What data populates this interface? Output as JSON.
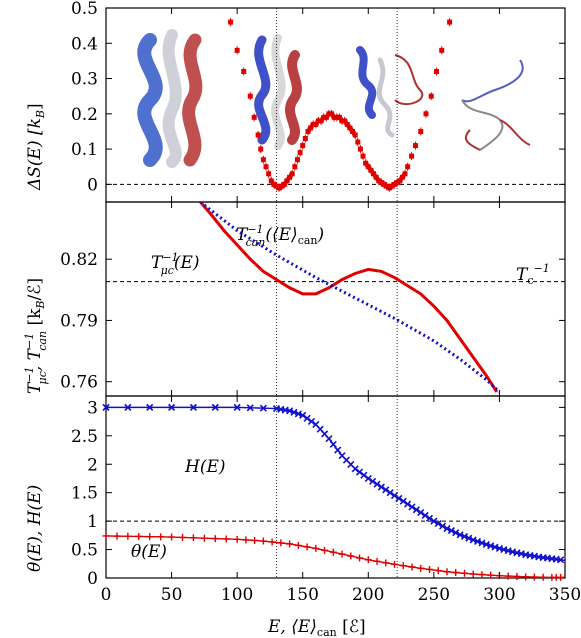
{
  "chart_data": [
    {
      "type": "scatter",
      "ylabel": "ΔS(E) [k_B]",
      "ylim": [
        -0.05,
        0.5
      ],
      "yticks": [
        "0",
        "0.1",
        "0.2",
        "0.3",
        "0.4",
        "0.5"
      ],
      "ytick_values": [
        0,
        0.1,
        0.2,
        0.3,
        0.4,
        0.5
      ],
      "reference_line": 0,
      "series": [
        {
          "color": "#e00000",
          "points": [
            [
              95,
              0.46
            ],
            [
              100,
              0.38
            ],
            [
              105,
              0.32
            ],
            [
              110,
              0.25
            ],
            [
              113,
              0.19
            ],
            [
              116,
              0.14
            ],
            [
              118,
              0.1
            ],
            [
              120,
              0.07
            ],
            [
              122,
              0.05
            ],
            [
              124,
              0.03
            ],
            [
              126,
              0.01
            ],
            [
              128,
              0.0
            ],
            [
              130,
              -0.005
            ],
            [
              132,
              -0.01
            ],
            [
              134,
              -0.005
            ],
            [
              136,
              0.0
            ],
            [
              138,
              0.01
            ],
            [
              140,
              0.02
            ],
            [
              142,
              0.03
            ],
            [
              144,
              0.05
            ],
            [
              146,
              0.07
            ],
            [
              148,
              0.09
            ],
            [
              150,
              0.11
            ],
            [
              152,
              0.13
            ],
            [
              154,
              0.15
            ],
            [
              156,
              0.16
            ],
            [
              158,
              0.17
            ],
            [
              160,
              0.17
            ],
            [
              162,
              0.18
            ],
            [
              164,
              0.18
            ],
            [
              166,
              0.19
            ],
            [
              168,
              0.19
            ],
            [
              170,
              0.2
            ],
            [
              172,
              0.2
            ],
            [
              174,
              0.19
            ],
            [
              176,
              0.19
            ],
            [
              178,
              0.19
            ],
            [
              180,
              0.18
            ],
            [
              182,
              0.18
            ],
            [
              184,
              0.17
            ],
            [
              186,
              0.16
            ],
            [
              188,
              0.15
            ],
            [
              190,
              0.14
            ],
            [
              192,
              0.12
            ],
            [
              194,
              0.1
            ],
            [
              196,
              0.08
            ],
            [
              198,
              0.06
            ],
            [
              200,
              0.05
            ],
            [
              202,
              0.04
            ],
            [
              204,
              0.03
            ],
            [
              206,
              0.02
            ],
            [
              208,
              0.01
            ],
            [
              210,
              0.005
            ],
            [
              212,
              0.0
            ],
            [
              214,
              -0.005
            ],
            [
              216,
              -0.01
            ],
            [
              218,
              -0.005
            ],
            [
              220,
              0.0
            ],
            [
              222,
              0.005
            ],
            [
              224,
              0.01
            ],
            [
              226,
              0.02
            ],
            [
              228,
              0.03
            ],
            [
              230,
              0.05
            ],
            [
              233,
              0.08
            ],
            [
              236,
              0.11
            ],
            [
              240,
              0.15
            ],
            [
              244,
              0.2
            ],
            [
              248,
              0.25
            ],
            [
              252,
              0.32
            ],
            [
              256,
              0.38
            ],
            [
              262,
              0.46
            ]
          ]
        }
      ]
    },
    {
      "type": "line",
      "ylabel": "T_μc^-1, T_can^-1 [k_B/ℰ]",
      "ylim": [
        0.753,
        0.848
      ],
      "yticks": [
        "0.76",
        "0.79",
        "0.82"
      ],
      "ytick_values": [
        0.76,
        0.79,
        0.82
      ],
      "reference_line": 0.809,
      "reference_label": "T_c^-1",
      "series": [
        {
          "name": "T_μc^-1(E)",
          "color": "#e00000",
          "style": "solid",
          "points": [
            [
              72,
              0.848
            ],
            [
              80,
              0.842
            ],
            [
              90,
              0.834
            ],
            [
              100,
              0.827
            ],
            [
              110,
              0.82
            ],
            [
              120,
              0.814
            ],
            [
              130,
              0.81
            ],
            [
              140,
              0.806
            ],
            [
              150,
              0.803
            ],
            [
              160,
              0.803
            ],
            [
              170,
              0.806
            ],
            [
              180,
              0.81
            ],
            [
              190,
              0.813
            ],
            [
              200,
              0.815
            ],
            [
              210,
              0.814
            ],
            [
              220,
              0.811
            ],
            [
              230,
              0.807
            ],
            [
              240,
              0.803
            ],
            [
              250,
              0.797
            ],
            [
              260,
              0.79
            ],
            [
              270,
              0.781
            ],
            [
              280,
              0.772
            ],
            [
              290,
              0.763
            ],
            [
              298,
              0.755
            ]
          ]
        },
        {
          "name": "T_can^-1(⟨E⟩_can)",
          "color": "#1010cc",
          "style": "dotted",
          "points": [
            [
              72,
              0.848
            ],
            [
              100,
              0.834
            ],
            [
              130,
              0.822
            ],
            [
              160,
              0.811
            ],
            [
              190,
              0.801
            ],
            [
              220,
              0.791
            ],
            [
              250,
              0.78
            ],
            [
              270,
              0.771
            ],
            [
              290,
              0.761
            ],
            [
              300,
              0.755
            ]
          ]
        }
      ]
    },
    {
      "type": "line",
      "xlabel": "E, ⟨E⟩_can [ℰ]",
      "ylabel": "θ(E), H(E)",
      "ylim": [
        0,
        3.2
      ],
      "yticks": [
        "0",
        "0.5",
        "1",
        "1.5",
        "2",
        "2.5",
        "3"
      ],
      "ytick_values": [
        0,
        0.5,
        1,
        1.5,
        2,
        2.5,
        3
      ],
      "xlim": [
        0,
        350
      ],
      "xticks": [
        "0",
        "50",
        "100",
        "150",
        "200",
        "250",
        "300",
        "350"
      ],
      "xtick_values": [
        0,
        50,
        100,
        150,
        200,
        250,
        300,
        350
      ],
      "reference_line": 1,
      "series": [
        {
          "name": "H(E)",
          "color": "#1010cc",
          "marker": "x",
          "points": [
            [
              0,
              3.0
            ],
            [
              50,
              3.0
            ],
            [
              100,
              3.0
            ],
            [
              130,
              2.98
            ],
            [
              140,
              2.94
            ],
            [
              150,
              2.86
            ],
            [
              160,
              2.7
            ],
            [
              170,
              2.45
            ],
            [
              180,
              2.15
            ],
            [
              190,
              1.92
            ],
            [
              200,
              1.75
            ],
            [
              210,
              1.6
            ],
            [
              220,
              1.45
            ],
            [
              230,
              1.3
            ],
            [
              240,
              1.15
            ],
            [
              250,
              1.0
            ],
            [
              260,
              0.87
            ],
            [
              270,
              0.76
            ],
            [
              280,
              0.67
            ],
            [
              290,
              0.59
            ],
            [
              300,
              0.52
            ],
            [
              310,
              0.46
            ],
            [
              320,
              0.41
            ],
            [
              330,
              0.37
            ],
            [
              340,
              0.34
            ],
            [
              350,
              0.31
            ]
          ]
        },
        {
          "name": "θ(E)",
          "color": "#e00000",
          "marker": "+",
          "points": [
            [
              0,
              0.74
            ],
            [
              25,
              0.73
            ],
            [
              50,
              0.72
            ],
            [
              75,
              0.7
            ],
            [
              100,
              0.68
            ],
            [
              120,
              0.65
            ],
            [
              140,
              0.6
            ],
            [
              160,
              0.52
            ],
            [
              180,
              0.42
            ],
            [
              200,
              0.32
            ],
            [
              220,
              0.24
            ],
            [
              240,
              0.17
            ],
            [
              260,
              0.11
            ],
            [
              280,
              0.07
            ],
            [
              300,
              0.04
            ],
            [
              320,
              0.02
            ],
            [
              340,
              0.01
            ],
            [
              350,
              0.01
            ]
          ]
        }
      ]
    }
  ],
  "labels": {
    "top_ylabel": "ΔS(E) [k",
    "top_ylabel_sub": "B",
    "top_ylabel_end": "]",
    "mid_ylabel_a": "T",
    "mid_ylabel_a_sup": "−1",
    "mid_ylabel_a_sub": "μc",
    "mid_ylabel_b": ", T",
    "mid_ylabel_b_sup": "−1",
    "mid_ylabel_b_sub": "can",
    "mid_ylabel_unit": " [k",
    "mid_ylabel_unit_sub": "B",
    "mid_ylabel_unit_end": "/ℰ]",
    "bot_ylabel": "θ(E),  H(E)",
    "xlabel_a": "E,  ⟨E⟩",
    "xlabel_sub": "can",
    "xlabel_end": " [ℰ]",
    "tmu_label": "T",
    "tmu_sup": "−1",
    "tmu_sub": "μc",
    "tmu_arg": "(E)",
    "tcan_label": "T",
    "tcan_sup": "−1",
    "tcan_sub": "can",
    "tcan_arg": "(⟨E⟩",
    "tcan_arg_sub": "can",
    "tcan_arg_end": ")",
    "tc_label": "T",
    "tc_sub": "c",
    "tc_sup": "−1",
    "h_label": "H(E)",
    "theta_label": "θ(E)"
  },
  "transition_lines_x": [
    130,
    222
  ]
}
